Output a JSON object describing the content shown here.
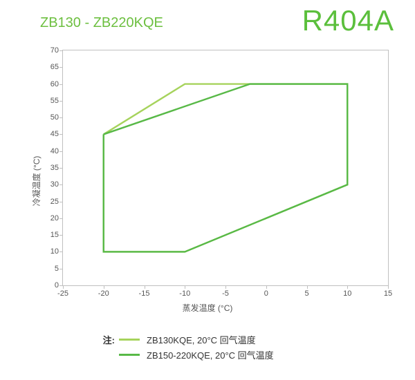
{
  "header": {
    "left_title": "ZB130 - ZB220KQE",
    "left_color": "#6cbf3f",
    "left_fontsize": 20,
    "right_title": "R404A",
    "right_color": "#5bbf3c",
    "right_fontsize": 42
  },
  "chart": {
    "type": "line-envelope",
    "background_color": "#ffffff",
    "border_color": "#bfbfbf",
    "xlabel": "蒸发温度 (°C)",
    "ylabel": "冷凝温度 (°C)",
    "axis_label_fontsize": 12,
    "axis_label_color": "#555555",
    "tick_fontsize": 11,
    "tick_color": "#555555",
    "xlim": [
      -25,
      15
    ],
    "ylim": [
      0,
      70
    ],
    "xticks": [
      -25,
      -20,
      -15,
      -10,
      -5,
      0,
      5,
      10,
      15
    ],
    "yticks": [
      0,
      5,
      10,
      15,
      20,
      25,
      30,
      35,
      40,
      45,
      50,
      55,
      60,
      65,
      70
    ],
    "grid": false,
    "series": [
      {
        "name": "ZB130KQE",
        "color": "#a6d35c",
        "line_width": 2.4,
        "points": [
          [
            -20,
            45
          ],
          [
            -10,
            60
          ],
          [
            10,
            60
          ],
          [
            10,
            30
          ],
          [
            -10,
            10
          ],
          [
            -20,
            10
          ],
          [
            -20,
            45
          ]
        ]
      },
      {
        "name": "ZB150-220KQE",
        "color": "#58b947",
        "line_width": 2.4,
        "points": [
          [
            -20,
            45
          ],
          [
            -2,
            60
          ],
          [
            10,
            60
          ],
          [
            10,
            30
          ],
          [
            -10,
            10
          ],
          [
            -20,
            10
          ],
          [
            -20,
            45
          ]
        ]
      }
    ]
  },
  "legend": {
    "note_label": "注:",
    "note_fontsize": 13,
    "note_color": "#333333",
    "item_fontsize": 13,
    "item_color": "#333333",
    "swatch_width": 30,
    "swatch_height": 3,
    "items": [
      {
        "swatch_color": "#a6d35c",
        "label": "ZB130KQE, 20°C 回气温度"
      },
      {
        "swatch_color": "#58b947",
        "label": "ZB150-220KQE, 20°C 回气温度"
      }
    ]
  }
}
